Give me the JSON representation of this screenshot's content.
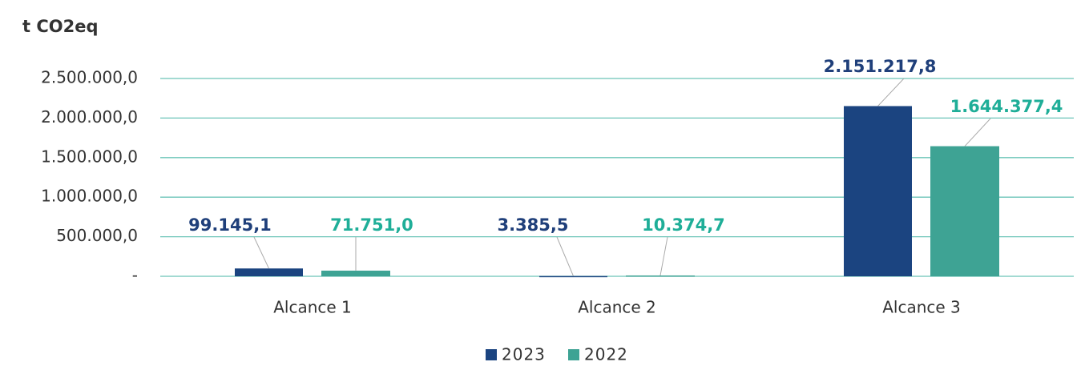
{
  "chart_data": {
    "type": "bar",
    "title": "t CO2eq",
    "categories": [
      "Alcance 1",
      "Alcance 2",
      "Alcance 3"
    ],
    "series": [
      {
        "name": "2023",
        "color": "#1b4480",
        "label_color": "#1f3f7a",
        "values": [
          99145.1,
          3385.5,
          2151217.8
        ],
        "value_labels": [
          "99.145,1",
          "3.385,5",
          "2.151.217,8"
        ]
      },
      {
        "name": "2022",
        "color": "#3ea394",
        "label_color": "#1fae98",
        "values": [
          71751.0,
          10374.7,
          1644377.4
        ],
        "value_labels": [
          "71.751,0",
          "10.374,7",
          "1.644.377,4"
        ]
      }
    ],
    "ylim": [
      0,
      2500000
    ],
    "yticks": [
      {
        "value": 0,
        "label": "-"
      },
      {
        "value": 500000,
        "label": "500.000,0"
      },
      {
        "value": 1000000,
        "label": "1.000.000,0"
      },
      {
        "value": 1500000,
        "label": "1.500.000,0"
      },
      {
        "value": 2000000,
        "label": "2.000.000,0"
      },
      {
        "value": 2500000,
        "label": "2.500.000,0"
      }
    ],
    "grid": true,
    "legend": "bottom"
  }
}
